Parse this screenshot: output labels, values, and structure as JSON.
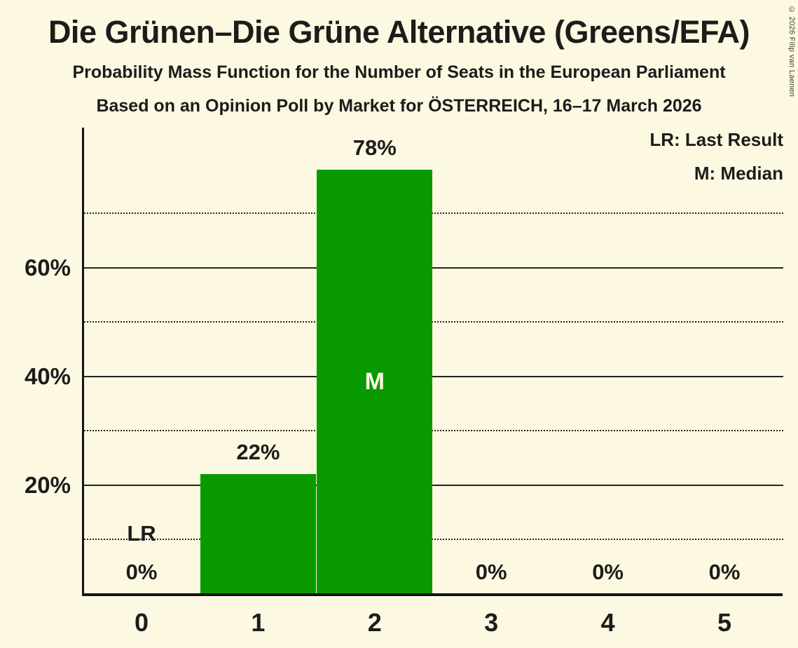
{
  "page": {
    "title": "Die Grünen–Die Grüne Alternative (Greens/EFA)",
    "subtitle": "Probability Mass Function for the Number of Seats in the European Parliament",
    "source_line": "Based on an Opinion Poll by Market for ÖSTERREICH, 16–17 March 2026",
    "copyright": "© 2026 Filip van Laenen"
  },
  "legend": {
    "lr_label": "LR: Last Result",
    "m_label": "M: Median"
  },
  "colors": {
    "background": "#FDF8E2",
    "bar": "#089A00",
    "text": "#1D1C1A",
    "bar_marker_text": "#FDF8E2",
    "grid": "#24231f"
  },
  "chart_data": {
    "type": "bar",
    "title": "Die Grünen–Die Grüne Alternative (Greens/EFA)",
    "subtitle": "Probability Mass Function for the Number of Seats in the European Parliament",
    "source": "Based on an Opinion Poll by Market for ÖSTERREICH, 16–17 March 2026",
    "categories": [
      "0",
      "1",
      "2",
      "3",
      "4",
      "5"
    ],
    "values": [
      0,
      22,
      78,
      0,
      0,
      0
    ],
    "bar_labels": [
      "0%",
      "22%",
      "78%",
      "0%",
      "0%",
      "0%"
    ],
    "ylim": [
      0,
      86
    ],
    "ytick_values": [
      20,
      40,
      60
    ],
    "ytick_labels": [
      "20%",
      "40%",
      "60%"
    ],
    "minor_gridline_values": [
      10,
      30,
      50,
      70
    ],
    "median_category": "2",
    "median_marker": "M",
    "last_result_category": "0",
    "last_result_marker": "LR",
    "legend_entries": [
      "LR: Last Result",
      "M: Median"
    ],
    "grid": "horizontal",
    "legend_position": "top-right"
  }
}
